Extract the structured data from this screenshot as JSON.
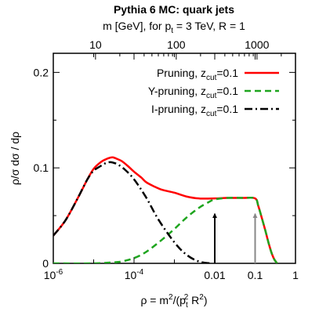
{
  "chart_data": {
    "type": "line",
    "title": "Pythia 6 MC: quark jets",
    "top_axis": {
      "label_pre": "m [GeV], for p",
      "label_sub": "t",
      "label_post": " = 3 TeV, R = 1",
      "ticks": [
        "10",
        "100",
        "1000"
      ],
      "tick_values": [
        10,
        100,
        1000
      ]
    },
    "x_axis": {
      "scale": "log10",
      "xlim": [
        1e-06,
        1
      ],
      "label_main": "ρ = m",
      "label_sup1": "2",
      "label_mid": "/(p",
      "label_sub": "t",
      "label_sup2": "2",
      "label_end": " R",
      "label_sup3": "2",
      "label_close": ")",
      "tick_labels": [
        {
          "value": 1e-06,
          "base": "10",
          "exp": "-6"
        },
        {
          "value": 0.0001,
          "base": "10",
          "exp": "-4"
        },
        {
          "value": 0.01,
          "text": "0.01"
        },
        {
          "value": 0.1,
          "text": "0.1"
        },
        {
          "value": 1,
          "text": "1"
        }
      ]
    },
    "y_axis": {
      "label": "ρ/σ dσ / dρ",
      "ylim": [
        0,
        0.22
      ],
      "ticks": [
        "0",
        "0.1",
        "0.2"
      ],
      "tick_values": [
        0,
        0.1,
        0.2
      ]
    },
    "legend_position": "top-right",
    "series": [
      {
        "name_pre": "Pruning, z",
        "name_sub": "cut",
        "name_post": "=0.1",
        "color": "#ff0000",
        "style": "solid",
        "points": [
          [
            1e-06,
            0.029
          ],
          [
            2e-06,
            0.045
          ],
          [
            4e-06,
            0.068
          ],
          [
            7e-06,
            0.088
          ],
          [
            1e-05,
            0.099
          ],
          [
            1.5e-05,
            0.106
          ],
          [
            2e-05,
            0.109
          ],
          [
            2.5e-05,
            0.1105
          ],
          [
            3e-05,
            0.111
          ],
          [
            4e-05,
            0.109
          ],
          [
            5e-05,
            0.107
          ],
          [
            7e-05,
            0.102
          ],
          [
            0.0001,
            0.096
          ],
          [
            0.00015,
            0.09
          ],
          [
            0.0002,
            0.085
          ],
          [
            0.0003,
            0.081
          ],
          [
            0.0005,
            0.077
          ],
          [
            0.001,
            0.074
          ],
          [
            0.002,
            0.07
          ],
          [
            0.004,
            0.068
          ],
          [
            0.01,
            0.068
          ],
          [
            0.02,
            0.0685
          ],
          [
            0.05,
            0.0685
          ],
          [
            0.1,
            0.068
          ],
          [
            0.12,
            0.06
          ],
          [
            0.15,
            0.046
          ],
          [
            0.18,
            0.034
          ],
          [
            0.22,
            0.02
          ],
          [
            0.26,
            0.01
          ],
          [
            0.3,
            0.004
          ],
          [
            0.35,
            0.0
          ]
        ]
      },
      {
        "name_pre": "Y-pruning, z",
        "name_sub": "cut",
        "name_post": "=0.1",
        "color": "#1ea51e",
        "style": "dashed",
        "points": [
          [
            1e-06,
            0.0
          ],
          [
            1e-05,
            0.0
          ],
          [
            3e-05,
            0.001
          ],
          [
            5e-05,
            0.002
          ],
          [
            0.0001,
            0.0055
          ],
          [
            0.0002,
            0.012
          ],
          [
            0.0005,
            0.025
          ],
          [
            0.001,
            0.036
          ],
          [
            0.002,
            0.048
          ],
          [
            0.004,
            0.058
          ],
          [
            0.007,
            0.064
          ],
          [
            0.01,
            0.067
          ],
          [
            0.02,
            0.0685
          ],
          [
            0.05,
            0.0685
          ],
          [
            0.1,
            0.068
          ],
          [
            0.12,
            0.06
          ],
          [
            0.15,
            0.046
          ],
          [
            0.18,
            0.034
          ],
          [
            0.22,
            0.02
          ],
          [
            0.26,
            0.01
          ],
          [
            0.3,
            0.004
          ],
          [
            0.35,
            0.0
          ]
        ]
      },
      {
        "name_pre": "I-pruning, z",
        "name_sub": "cut",
        "name_post": "=0.1",
        "color": "#000000",
        "style": "dashdot",
        "points": [
          [
            1e-06,
            0.029
          ],
          [
            2e-06,
            0.045
          ],
          [
            4e-06,
            0.068
          ],
          [
            7e-06,
            0.088
          ],
          [
            1e-05,
            0.097
          ],
          [
            1.5e-05,
            0.102
          ],
          [
            2e-05,
            0.105
          ],
          [
            2.5e-05,
            0.106
          ],
          [
            3e-05,
            0.1055
          ],
          [
            4e-05,
            0.1035
          ],
          [
            6e-05,
            0.098
          ],
          [
            0.0001,
            0.088
          ],
          [
            0.0002,
            0.069
          ],
          [
            0.0004,
            0.046
          ],
          [
            0.001,
            0.022
          ],
          [
            0.002,
            0.009
          ],
          [
            0.004,
            0.002
          ],
          [
            0.008,
            0.0
          ]
        ]
      }
    ],
    "annotations": [
      {
        "type": "arrow",
        "x": 0.01,
        "y_from": 0.0,
        "y_to": 0.052,
        "color": "#000000"
      },
      {
        "type": "arrow",
        "x": 0.1,
        "y_from": 0.0,
        "y_to": 0.052,
        "color": "#888888"
      }
    ]
  }
}
